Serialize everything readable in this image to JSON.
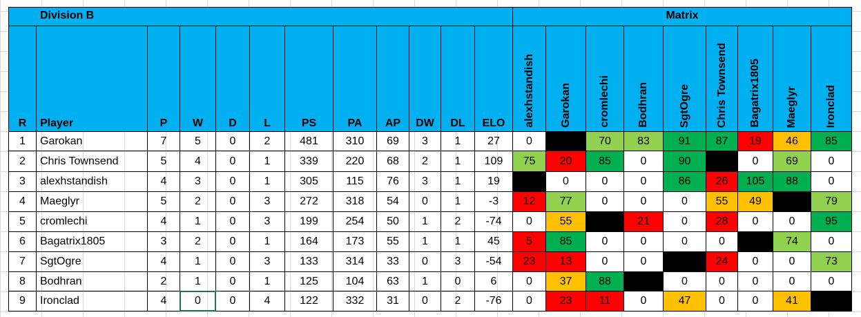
{
  "header": {
    "title": "Division B",
    "matrix_title": "Matrix"
  },
  "table": {
    "columns": [
      "R",
      "Player",
      "P",
      "W",
      "D",
      "L",
      "PS",
      "PA",
      "AP",
      "DW",
      "DL",
      "ELO"
    ],
    "matrix_columns": [
      "alexhstandish",
      "Garokan",
      "cromlechi",
      "Bodhran",
      "SgtOgre",
      "Chris Townsend",
      "Bagatrix1805",
      "Maeglyr",
      "Ironclad"
    ],
    "rows": [
      {
        "cells": [
          1,
          "Garokan",
          7,
          5,
          0,
          2,
          481,
          310,
          69,
          3,
          1,
          27
        ],
        "matrix": [
          0,
          null,
          70,
          83,
          91,
          87,
          19,
          46,
          85
        ],
        "matrix_colors": [
          "#ffffff",
          "#000000",
          "#92d050",
          "#92d050",
          "#00b050",
          "#00b050",
          "#ff0000",
          "#ffc000",
          "#00b050"
        ]
      },
      {
        "cells": [
          2,
          "Chris Townsend",
          5,
          4,
          0,
          1,
          339,
          220,
          68,
          2,
          1,
          109
        ],
        "matrix": [
          75,
          20,
          85,
          0,
          90,
          null,
          0,
          69,
          0
        ],
        "matrix_colors": [
          "#92d050",
          "#ff0000",
          "#00b050",
          "#ffffff",
          "#00b050",
          "#000000",
          "#ffffff",
          "#92d050",
          "#ffffff"
        ]
      },
      {
        "cells": [
          3,
          "alexhstandish",
          4,
          3,
          0,
          1,
          305,
          115,
          76,
          3,
          1,
          19
        ],
        "matrix": [
          null,
          0,
          0,
          0,
          86,
          26,
          105,
          88,
          0
        ],
        "matrix_colors": [
          "#000000",
          "#ffffff",
          "#ffffff",
          "#ffffff",
          "#00b050",
          "#ff0000",
          "#00b050",
          "#00b050",
          "#ffffff"
        ]
      },
      {
        "cells": [
          4,
          "Maeglyr",
          5,
          2,
          0,
          3,
          272,
          318,
          54,
          0,
          1,
          -3
        ],
        "matrix": [
          12,
          77,
          0,
          0,
          0,
          55,
          49,
          null,
          79
        ],
        "matrix_colors": [
          "#ff0000",
          "#92d050",
          "#ffffff",
          "#ffffff",
          "#ffffff",
          "#ffc000",
          "#ffc000",
          "#000000",
          "#92d050"
        ]
      },
      {
        "cells": [
          5,
          "cromlechi",
          4,
          1,
          0,
          3,
          199,
          254,
          50,
          1,
          2,
          -74
        ],
        "matrix": [
          0,
          55,
          null,
          21,
          0,
          28,
          0,
          0,
          95
        ],
        "matrix_colors": [
          "#ffffff",
          "#ffc000",
          "#000000",
          "#ff0000",
          "#ffffff",
          "#ff0000",
          "#ffffff",
          "#ffffff",
          "#00b050"
        ]
      },
      {
        "cells": [
          6,
          "Bagatrix1805",
          3,
          2,
          0,
          1,
          164,
          173,
          55,
          1,
          1,
          45
        ],
        "matrix": [
          5,
          85,
          0,
          0,
          0,
          0,
          null,
          74,
          0
        ],
        "matrix_colors": [
          "#ff0000",
          "#00b050",
          "#ffffff",
          "#ffffff",
          "#ffffff",
          "#ffffff",
          "#000000",
          "#92d050",
          "#ffffff"
        ]
      },
      {
        "cells": [
          7,
          "SgtOgre",
          4,
          1,
          0,
          3,
          133,
          314,
          33,
          0,
          3,
          -54
        ],
        "matrix": [
          23,
          13,
          0,
          0,
          null,
          24,
          0,
          0,
          73
        ],
        "matrix_colors": [
          "#ff0000",
          "#ff0000",
          "#ffffff",
          "#ffffff",
          "#000000",
          "#ff0000",
          "#ffffff",
          "#ffffff",
          "#92d050"
        ]
      },
      {
        "cells": [
          8,
          "Bodhran",
          2,
          1,
          0,
          1,
          125,
          104,
          63,
          1,
          0,
          6
        ],
        "matrix": [
          0,
          37,
          88,
          null,
          0,
          0,
          0,
          0,
          0
        ],
        "matrix_colors": [
          "#ffffff",
          "#ffc000",
          "#00b050",
          "#000000",
          "#ffffff",
          "#ffffff",
          "#ffffff",
          "#ffffff",
          "#ffffff"
        ]
      },
      {
        "cells": [
          9,
          "Ironclad",
          4,
          0,
          0,
          4,
          122,
          332,
          31,
          0,
          2,
          -76
        ],
        "matrix": [
          0,
          23,
          11,
          0,
          47,
          0,
          0,
          41,
          null
        ],
        "matrix_colors": [
          "#ffffff",
          "#ff0000",
          "#ff0000",
          "#ffffff",
          "#ffc000",
          "#ffffff",
          "#ffffff",
          "#ffc000",
          "#000000"
        ]
      }
    ]
  }
}
